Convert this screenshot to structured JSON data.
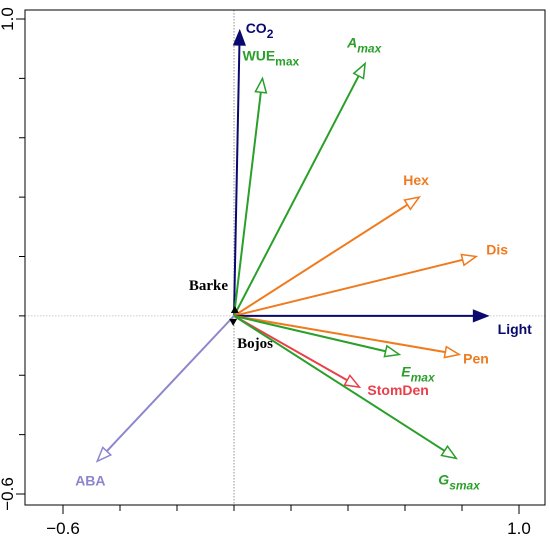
{
  "chart_data": {
    "type": "biplot",
    "xlim": [
      -0.6,
      1.0
    ],
    "ylim": [
      -0.6,
      1.0
    ],
    "x_ticks": [
      {
        "value": -0.6,
        "label": "−0.6"
      },
      {
        "value": 1.0,
        "label": "1.0"
      }
    ],
    "y_ticks": [
      {
        "value": 1.0,
        "label": "1.0"
      },
      {
        "value": -0.6,
        "label": "−0.6"
      }
    ],
    "minor_tick_step": 0.2,
    "reference_lines": {
      "x": 0,
      "y": 0
    },
    "vectors": [
      {
        "id": "co2",
        "label": "CO",
        "sub": "2",
        "x": 0.02,
        "y": 0.96,
        "color": "#0a0a6e",
        "head": "filled"
      },
      {
        "id": "wue",
        "label": "WUE",
        "sub": "max",
        "x": 0.1,
        "y": 0.8,
        "color": "#2aa02a",
        "head": "open"
      },
      {
        "id": "amax",
        "label": "A",
        "sub": "max",
        "x": 0.46,
        "y": 0.85,
        "color": "#2aa02a",
        "head": "open",
        "italic": true
      },
      {
        "id": "hex",
        "label": "Hex",
        "sub": "",
        "x": 0.65,
        "y": 0.4,
        "color": "#f07a1e",
        "head": "open"
      },
      {
        "id": "dis",
        "label": "Dis",
        "sub": "",
        "x": 0.85,
        "y": 0.2,
        "color": "#f07a1e",
        "head": "open"
      },
      {
        "id": "light",
        "label": "Light",
        "sub": "",
        "x": 0.89,
        "y": 0.0,
        "color": "#0a0a6e",
        "head": "filled"
      },
      {
        "id": "pen",
        "label": "Pen",
        "sub": "",
        "x": 0.79,
        "y": -0.13,
        "color": "#f07a1e",
        "head": "open"
      },
      {
        "id": "emax",
        "label": "E",
        "sub": "max",
        "x": 0.58,
        "y": -0.13,
        "color": "#2aa02a",
        "head": "open",
        "italic": true
      },
      {
        "id": "stomden",
        "label": "StomDen",
        "sub": "",
        "x": 0.44,
        "y": -0.24,
        "color": "#e8404a",
        "head": "open"
      },
      {
        "id": "gsmax",
        "label": "G",
        "sub": "smax",
        "x": 0.78,
        "y": -0.48,
        "color": "#2aa02a",
        "head": "open",
        "italic": true
      },
      {
        "id": "aba",
        "label": "ABA",
        "sub": "",
        "x": -0.48,
        "y": -0.49,
        "color": "#8c86cf",
        "head": "open"
      }
    ],
    "samples": [
      {
        "id": "barke",
        "label": "Barke",
        "x": 0.003,
        "y": 0.02
      },
      {
        "id": "bojos",
        "label": "Bojos",
        "x": -0.003,
        "y": -0.02
      }
    ]
  }
}
